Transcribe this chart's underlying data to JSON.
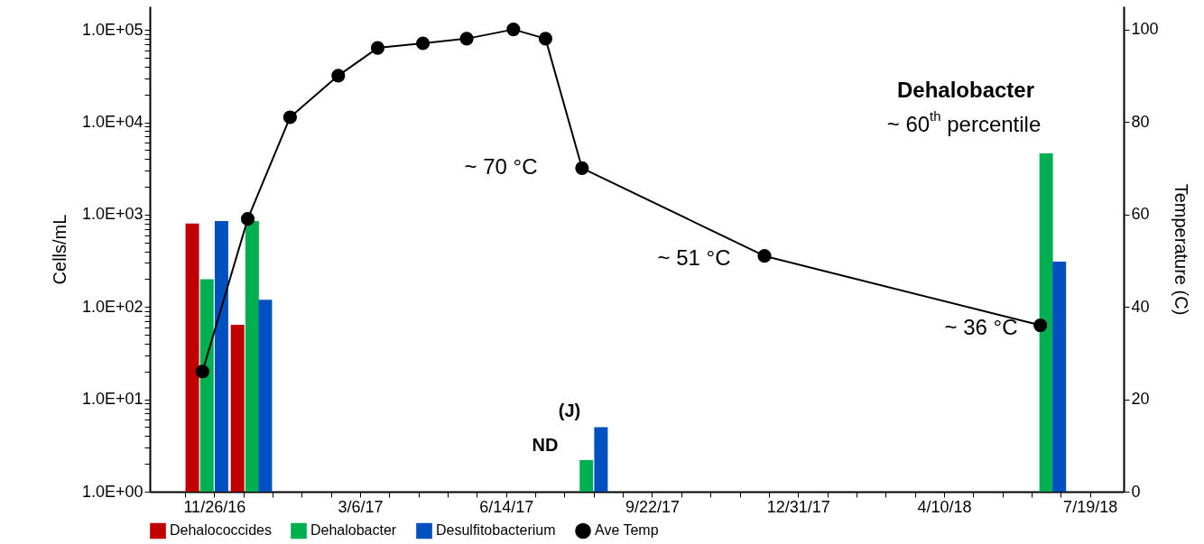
{
  "chart_data": {
    "type": "bar",
    "xlabel": null,
    "ylabel": "Cells/mL",
    "y2label": "Temperature (C)",
    "log": "y",
    "legend": "bottom",
    "xlim": [
      "2016-10-16",
      "2018-08-08"
    ],
    "xticks": [
      {
        "value": "2016-11-06",
        "label": null
      },
      {
        "value": "2016-11-26",
        "label": "11/26/16"
      },
      {
        "value": "2016-12-16",
        "label": null
      },
      {
        "value": "2017-01-05",
        "label": null
      },
      {
        "value": "2017-01-25",
        "label": null
      },
      {
        "value": "2017-02-14",
        "label": null
      },
      {
        "value": "2017-03-06",
        "label": "3/6/17"
      },
      {
        "value": "2017-03-26",
        "label": null
      },
      {
        "value": "2017-04-15",
        "label": null
      },
      {
        "value": "2017-05-05",
        "label": null
      },
      {
        "value": "2017-05-25",
        "label": null
      },
      {
        "value": "2017-06-14",
        "label": "6/14/17"
      },
      {
        "value": "2017-07-04",
        "label": null
      },
      {
        "value": "2017-07-24",
        "label": null
      },
      {
        "value": "2017-08-13",
        "label": null
      },
      {
        "value": "2017-09-02",
        "label": null
      },
      {
        "value": "2017-09-22",
        "label": "9/22/17"
      },
      {
        "value": "2017-10-12",
        "label": null
      },
      {
        "value": "2017-11-01",
        "label": null
      },
      {
        "value": "2017-11-21",
        "label": null
      },
      {
        "value": "2017-12-11",
        "label": null
      },
      {
        "value": "2017-12-31",
        "label": "12/31/17"
      },
      {
        "value": "2018-01-20",
        "label": null
      },
      {
        "value": "2018-02-09",
        "label": null
      },
      {
        "value": "2018-03-01",
        "label": null
      },
      {
        "value": "2018-03-21",
        "label": null
      },
      {
        "value": "2018-04-10",
        "label": "4/10/18"
      },
      {
        "value": "2018-04-30",
        "label": null
      },
      {
        "value": "2018-05-20",
        "label": null
      },
      {
        "value": "2018-06-09",
        "label": null
      },
      {
        "value": "2018-06-29",
        "label": null
      },
      {
        "value": "2018-07-19",
        "label": "7/19/18"
      }
    ],
    "ylim": [
      1,
      180000
    ],
    "yticks": [
      {
        "value": 1,
        "label": "1.0E+00"
      },
      {
        "value": 2,
        "label": null
      },
      {
        "value": 3,
        "label": null
      },
      {
        "value": 4,
        "label": null
      },
      {
        "value": 5,
        "label": null
      },
      {
        "value": 6,
        "label": null
      },
      {
        "value": 7,
        "label": null
      },
      {
        "value": 8,
        "label": null
      },
      {
        "value": 9,
        "label": null
      },
      {
        "value": 10,
        "label": "1.0E+01"
      },
      {
        "value": 20,
        "label": null
      },
      {
        "value": 30,
        "label": null
      },
      {
        "value": 40,
        "label": null
      },
      {
        "value": 50,
        "label": null
      },
      {
        "value": 60,
        "label": null
      },
      {
        "value": 70,
        "label": null
      },
      {
        "value": 80,
        "label": null
      },
      {
        "value": 90,
        "label": null
      },
      {
        "value": 100,
        "label": "1.0E+02"
      },
      {
        "value": 200,
        "label": null
      },
      {
        "value": 300,
        "label": null
      },
      {
        "value": 400,
        "label": null
      },
      {
        "value": 500,
        "label": null
      },
      {
        "value": 600,
        "label": null
      },
      {
        "value": 700,
        "label": null
      },
      {
        "value": 800,
        "label": null
      },
      {
        "value": 900,
        "label": null
      },
      {
        "value": 1000,
        "label": "1.0E+03"
      },
      {
        "value": 2000,
        "label": null
      },
      {
        "value": 3000,
        "label": null
      },
      {
        "value": 4000,
        "label": null
      },
      {
        "value": 5000,
        "label": null
      },
      {
        "value": 6000,
        "label": null
      },
      {
        "value": 7000,
        "label": null
      },
      {
        "value": 8000,
        "label": null
      },
      {
        "value": 9000,
        "label": null
      },
      {
        "value": 10000,
        "label": "1.0E+04"
      },
      {
        "value": 20000,
        "label": null
      },
      {
        "value": 30000,
        "label": null
      },
      {
        "value": 40000,
        "label": null
      },
      {
        "value": 50000,
        "label": null
      },
      {
        "value": 60000,
        "label": null
      },
      {
        "value": 70000,
        "label": null
      },
      {
        "value": 80000,
        "label": null
      },
      {
        "value": 90000,
        "label": null
      },
      {
        "value": 100000,
        "label": "1.0E+05"
      }
    ],
    "y2lim": [
      0,
      105
    ],
    "y2ticks": [
      0,
      20,
      40,
      60,
      80,
      100
    ],
    "series": [
      {
        "name": "Dehalococcides",
        "color": "#c00000",
        "x": [
          "2016-11-11",
          "2016-12-12"
        ],
        "values": [
          800,
          64
        ]
      },
      {
        "name": "Dehalobacter",
        "color": "#00b050",
        "x": [
          "2016-11-21",
          "2016-12-22",
          "2017-08-08",
          "2018-06-19"
        ],
        "values": [
          200,
          850,
          2.2,
          4600
        ]
      },
      {
        "name": "Desulfitobacterium",
        "color": "#0050c0",
        "x": [
          "2016-12-01",
          "2016-12-31",
          "2017-08-18",
          "2018-06-28"
        ],
        "values": [
          850,
          120,
          5,
          310
        ]
      },
      {
        "name": "Ave Temp",
        "type": "line",
        "axis": "y2",
        "color": "#000000",
        "marker": "circle",
        "line_style": "solid",
        "x": [
          "2016-11-18",
          "2016-12-19",
          "2017-01-17",
          "2017-02-19",
          "2017-03-18",
          "2017-04-18",
          "2017-05-18",
          "2017-06-19",
          "2017-07-11",
          "2017-08-05",
          "2017-12-08",
          "2018-06-15"
        ],
        "values": [
          26,
          59,
          81,
          90,
          96,
          97,
          98,
          100,
          98,
          70,
          51,
          36
        ]
      }
    ],
    "annotations": [
      "~ 70 °C",
      "~ 51 °C",
      "~ 36 °C",
      "Dehalobacter",
      "~ 60$^{th}$ percentile",
      "(J)",
      "ND"
    ]
  }
}
